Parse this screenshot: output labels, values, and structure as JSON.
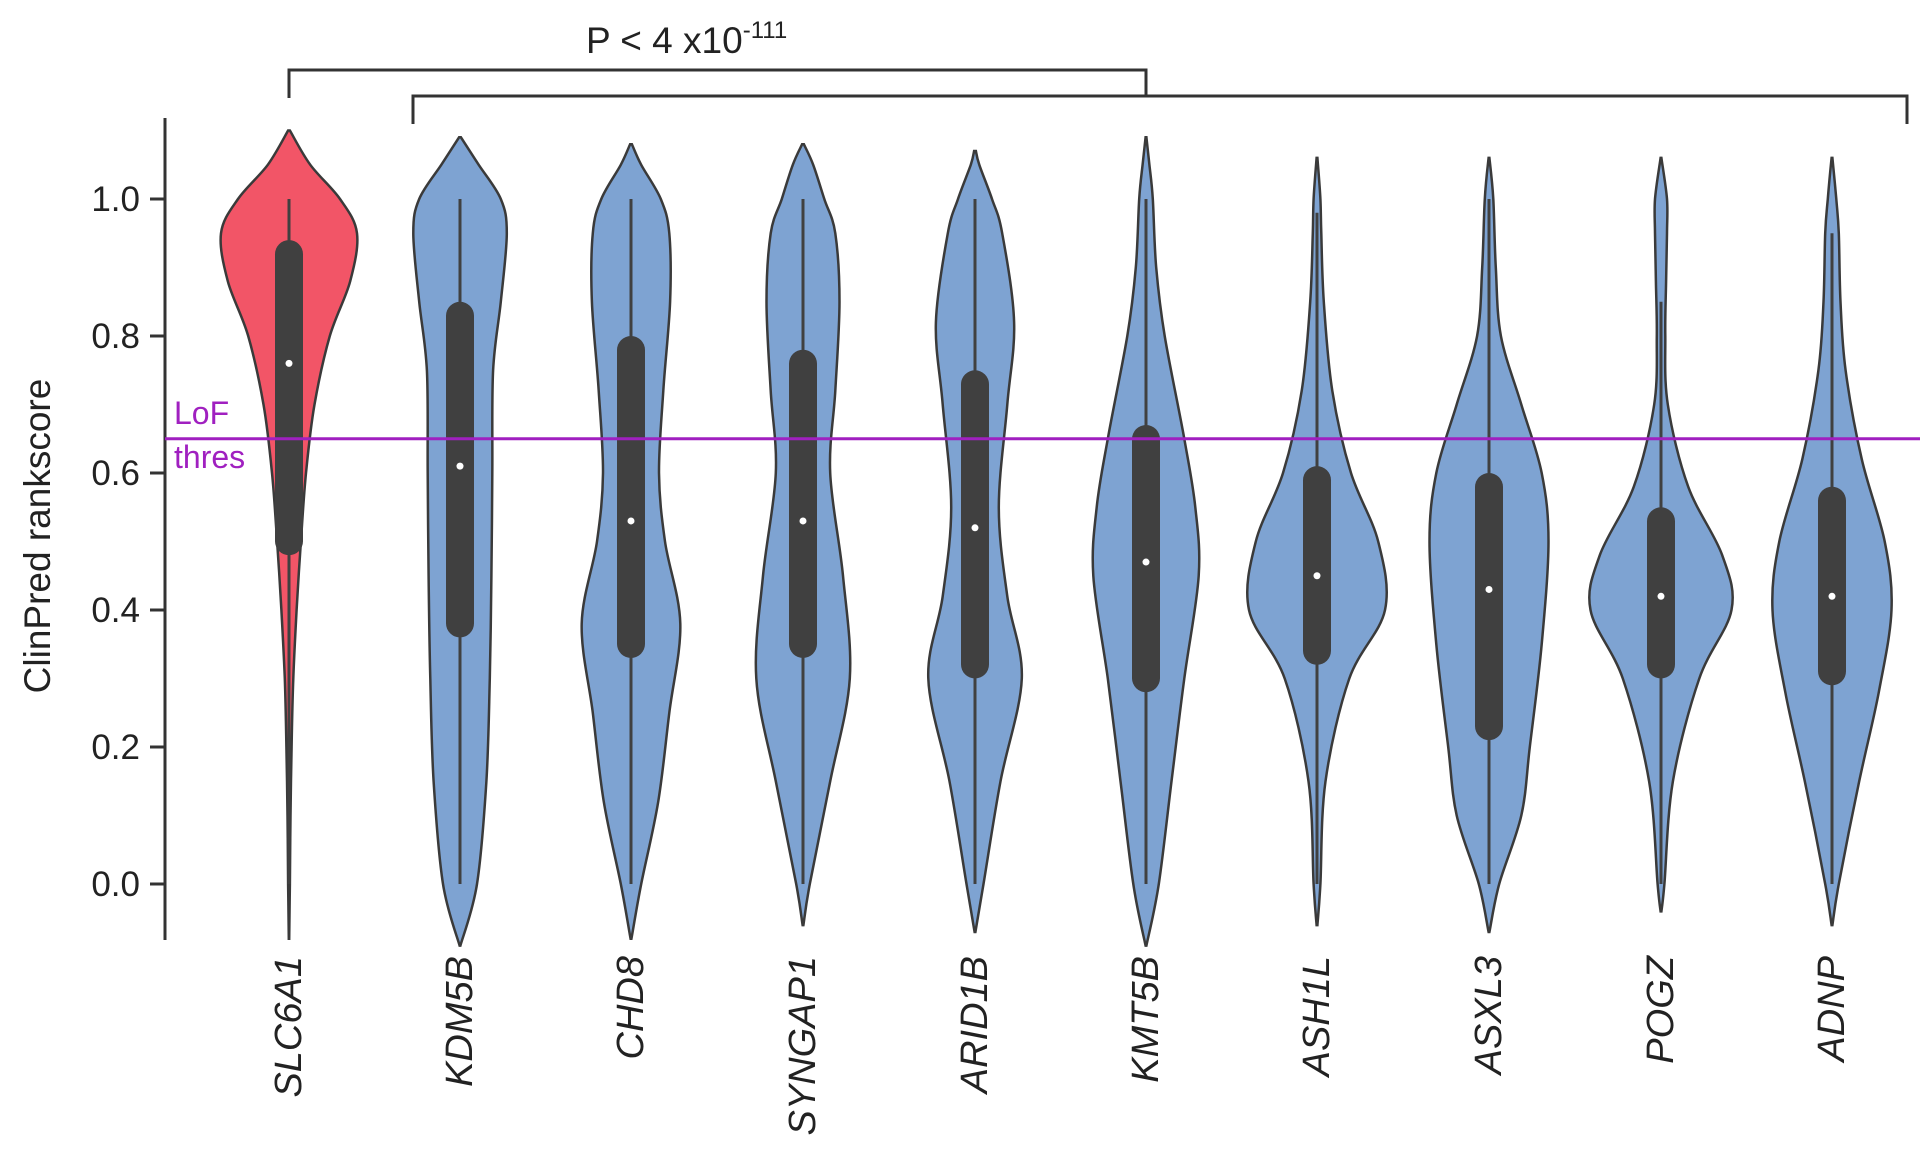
{
  "chart_data": {
    "type": "violin",
    "ylabel": "ClinPred rankscore",
    "ylim": [
      -0.08,
      1.1
    ],
    "yticks": [
      "0.0",
      "0.2",
      "0.4",
      "0.6",
      "0.8",
      "1.0"
    ],
    "threshold": {
      "value": 0.65,
      "label_line1": "LoF",
      "label_line2": "thres",
      "color": "#a020c0"
    },
    "significance": {
      "text": "P < 4 x10",
      "exponent": "-111"
    },
    "colors": {
      "highlight": "#f25567",
      "default": "#7ea3d2",
      "box": "#404040",
      "outline": "#3a3a3a"
    },
    "categories": [
      "SLC6A1",
      "KDM5B",
      "CHD8",
      "SYNGAP1",
      "ARID1B",
      "KMT5B",
      "ASH1L",
      "ASXL3",
      "POGZ",
      "ADNP"
    ],
    "series": [
      {
        "gene": "SLC6A1",
        "highlight": true,
        "whisker": [
          0.0,
          1.0
        ],
        "q1": 0.48,
        "q3": 0.94,
        "median": 0.76,
        "density": [
          [
            -0.08,
            0.002
          ],
          [
            0.0,
            0.01
          ],
          [
            0.1,
            0.018
          ],
          [
            0.2,
            0.03
          ],
          [
            0.3,
            0.05
          ],
          [
            0.4,
            0.09
          ],
          [
            0.5,
            0.14
          ],
          [
            0.6,
            0.2
          ],
          [
            0.7,
            0.3
          ],
          [
            0.8,
            0.48
          ],
          [
            0.88,
            0.72
          ],
          [
            0.95,
            0.8
          ],
          [
            1.0,
            0.6
          ],
          [
            1.05,
            0.25
          ],
          [
            1.1,
            0.01
          ]
        ]
      },
      {
        "gene": "KDM5B",
        "highlight": false,
        "whisker": [
          0.0,
          1.0
        ],
        "q1": 0.36,
        "q3": 0.85,
        "median": 0.61,
        "density": [
          [
            -0.09,
            0.005
          ],
          [
            0.0,
            0.2
          ],
          [
            0.15,
            0.31
          ],
          [
            0.3,
            0.35
          ],
          [
            0.45,
            0.37
          ],
          [
            0.6,
            0.38
          ],
          [
            0.75,
            0.39
          ],
          [
            0.85,
            0.48
          ],
          [
            0.95,
            0.55
          ],
          [
            1.0,
            0.48
          ],
          [
            1.05,
            0.22
          ],
          [
            1.09,
            0.01
          ]
        ]
      },
      {
        "gene": "CHD8",
        "highlight": false,
        "whisker": [
          0.0,
          1.0
        ],
        "q1": 0.33,
        "q3": 0.8,
        "median": 0.53,
        "density": [
          [
            -0.08,
            0.005
          ],
          [
            0.0,
            0.12
          ],
          [
            0.12,
            0.32
          ],
          [
            0.25,
            0.45
          ],
          [
            0.38,
            0.58
          ],
          [
            0.5,
            0.4
          ],
          [
            0.6,
            0.33
          ],
          [
            0.72,
            0.38
          ],
          [
            0.85,
            0.46
          ],
          [
            0.95,
            0.45
          ],
          [
            1.0,
            0.35
          ],
          [
            1.05,
            0.12
          ],
          [
            1.08,
            0.01
          ]
        ]
      },
      {
        "gene": "SYNGAP1",
        "highlight": false,
        "whisker": [
          0.0,
          1.0
        ],
        "q1": 0.33,
        "q3": 0.78,
        "median": 0.53,
        "density": [
          [
            -0.06,
            0.005
          ],
          [
            0.0,
            0.08
          ],
          [
            0.15,
            0.32
          ],
          [
            0.3,
            0.55
          ],
          [
            0.45,
            0.47
          ],
          [
            0.6,
            0.32
          ],
          [
            0.72,
            0.38
          ],
          [
            0.85,
            0.43
          ],
          [
            0.95,
            0.38
          ],
          [
            1.0,
            0.25
          ],
          [
            1.05,
            0.12
          ],
          [
            1.08,
            0.01
          ]
        ]
      },
      {
        "gene": "ARID1B",
        "highlight": false,
        "whisker": [
          0.0,
          1.0
        ],
        "q1": 0.3,
        "q3": 0.75,
        "median": 0.52,
        "density": [
          [
            -0.07,
            0.005
          ],
          [
            0.0,
            0.1
          ],
          [
            0.15,
            0.3
          ],
          [
            0.3,
            0.55
          ],
          [
            0.42,
            0.38
          ],
          [
            0.55,
            0.28
          ],
          [
            0.7,
            0.38
          ],
          [
            0.82,
            0.46
          ],
          [
            0.95,
            0.32
          ],
          [
            1.0,
            0.2
          ],
          [
            1.05,
            0.05
          ],
          [
            1.07,
            0.01
          ]
        ]
      },
      {
        "gene": "KMT5B",
        "highlight": false,
        "whisker": [
          0.0,
          1.0
        ],
        "q1": 0.28,
        "q3": 0.67,
        "median": 0.47,
        "density": [
          [
            -0.09,
            0.005
          ],
          [
            0.0,
            0.15
          ],
          [
            0.15,
            0.3
          ],
          [
            0.3,
            0.45
          ],
          [
            0.45,
            0.62
          ],
          [
            0.55,
            0.58
          ],
          [
            0.65,
            0.45
          ],
          [
            0.8,
            0.22
          ],
          [
            0.9,
            0.12
          ],
          [
            1.0,
            0.08
          ],
          [
            1.05,
            0.04
          ],
          [
            1.09,
            0.005
          ]
        ]
      },
      {
        "gene": "ASH1L",
        "highlight": false,
        "whisker": [
          0.0,
          0.98
        ],
        "q1": 0.32,
        "q3": 0.61,
        "median": 0.45,
        "density": [
          [
            -0.06,
            0.005
          ],
          [
            0.0,
            0.04
          ],
          [
            0.15,
            0.1
          ],
          [
            0.3,
            0.38
          ],
          [
            0.4,
            0.8
          ],
          [
            0.5,
            0.72
          ],
          [
            0.6,
            0.4
          ],
          [
            0.72,
            0.18
          ],
          [
            0.85,
            0.08
          ],
          [
            0.95,
            0.05
          ],
          [
            1.0,
            0.04
          ],
          [
            1.06,
            0.005
          ]
        ]
      },
      {
        "gene": "ASXL3",
        "highlight": false,
        "whisker": [
          0.0,
          1.0
        ],
        "q1": 0.21,
        "q3": 0.6,
        "median": 0.43,
        "density": [
          [
            -0.07,
            0.005
          ],
          [
            0.0,
            0.12
          ],
          [
            0.1,
            0.38
          ],
          [
            0.2,
            0.48
          ],
          [
            0.35,
            0.62
          ],
          [
            0.5,
            0.7
          ],
          [
            0.6,
            0.62
          ],
          [
            0.7,
            0.38
          ],
          [
            0.8,
            0.14
          ],
          [
            0.9,
            0.08
          ],
          [
            1.0,
            0.05
          ],
          [
            1.06,
            0.005
          ]
        ]
      },
      {
        "gene": "POGZ",
        "highlight": false,
        "whisker": [
          0.0,
          0.85
        ],
        "q1": 0.3,
        "q3": 0.55,
        "median": 0.42,
        "density": [
          [
            -0.04,
            0.005
          ],
          [
            0.0,
            0.04
          ],
          [
            0.15,
            0.14
          ],
          [
            0.3,
            0.45
          ],
          [
            0.4,
            0.83
          ],
          [
            0.48,
            0.72
          ],
          [
            0.58,
            0.32
          ],
          [
            0.7,
            0.08
          ],
          [
            0.8,
            0.05
          ],
          [
            0.88,
            0.06
          ],
          [
            0.95,
            0.07
          ],
          [
            1.0,
            0.07
          ],
          [
            1.06,
            0.005
          ]
        ]
      },
      {
        "gene": "ADNP",
        "highlight": false,
        "whisker": [
          0.0,
          0.95
        ],
        "q1": 0.29,
        "q3": 0.58,
        "median": 0.42,
        "density": [
          [
            -0.06,
            0.005
          ],
          [
            0.0,
            0.08
          ],
          [
            0.15,
            0.32
          ],
          [
            0.28,
            0.55
          ],
          [
            0.4,
            0.7
          ],
          [
            0.5,
            0.62
          ],
          [
            0.62,
            0.35
          ],
          [
            0.75,
            0.16
          ],
          [
            0.85,
            0.1
          ],
          [
            0.95,
            0.08
          ],
          [
            1.0,
            0.05
          ],
          [
            1.06,
            0.005
          ]
        ]
      }
    ]
  }
}
